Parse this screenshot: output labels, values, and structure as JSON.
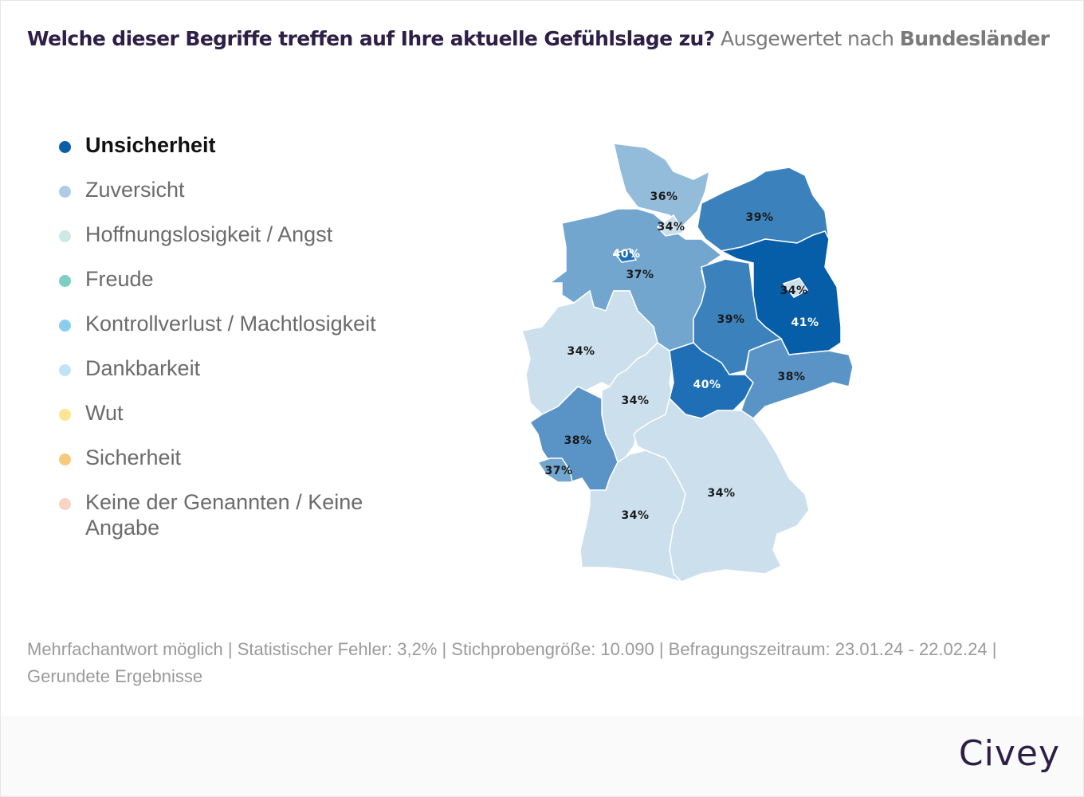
{
  "header": {
    "question": "Welche dieser Begriffe treffen auf Ihre aktuelle Gefühlslage zu?",
    "subtitle": "Ausgewertet nach",
    "breakdown": "Bundesländer"
  },
  "legend": {
    "items": [
      {
        "label": "Unsicherheit",
        "color": "#0b5ea8",
        "active": true
      },
      {
        "label": "Zuversicht",
        "color": "#afcbe6"
      },
      {
        "label": "Hoffnungslosigkeit / Angst",
        "color": "#cce9e3"
      },
      {
        "label": "Freude",
        "color": "#7dd0c1"
      },
      {
        "label": "Kontrollverlust / Machtlosigkeit",
        "color": "#89cdef"
      },
      {
        "label": "Dankbarkeit",
        "color": "#bfe4f6"
      },
      {
        "label": "Wut",
        "color": "#fde591"
      },
      {
        "label": "Sicherheit",
        "color": "#f7c97c"
      },
      {
        "label": "Keine der Genannten / Keine Angabe",
        "color": "#f9d3c5"
      }
    ]
  },
  "map": {
    "regions": [
      {
        "value": "36%"
      },
      {
        "value": "34%"
      },
      {
        "value": "39%"
      },
      {
        "value": "37%"
      },
      {
        "value": "40%"
      },
      {
        "value": "41%"
      },
      {
        "value": "34%"
      },
      {
        "value": "39%"
      },
      {
        "value": "34%"
      },
      {
        "value": "34%"
      },
      {
        "value": "40%"
      },
      {
        "value": "38%"
      },
      {
        "value": "38%"
      },
      {
        "value": "37%"
      },
      {
        "value": "34%"
      },
      {
        "value": "34%"
      }
    ]
  },
  "footer": {
    "note": "Mehrfachantwort möglich | Statistischer Fehler: 3,2% | Stichprobengröße: 10.090 | Befragungszeitraum: 23.01.24 - 22.02.24 | Gerundete Ergebnisse"
  },
  "brand": {
    "logo": "Civey"
  }
}
